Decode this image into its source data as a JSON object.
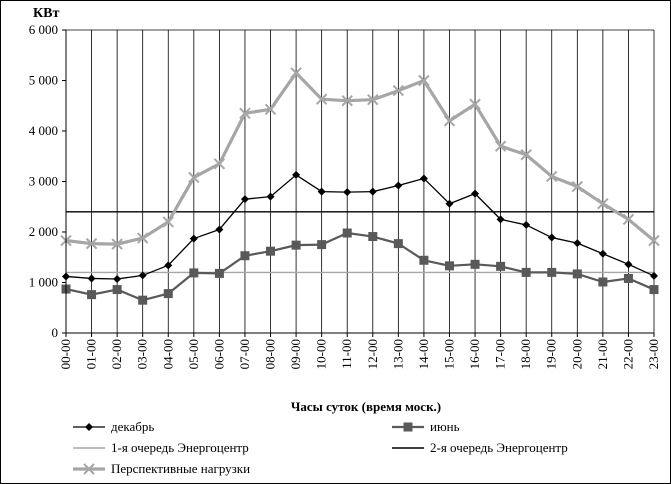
{
  "chart_data": {
    "type": "line",
    "ylabel": "КВт",
    "xlabel": "Часы суток (время моск.)",
    "ylim": [
      0,
      6000
    ],
    "yticks": [
      0,
      1000,
      2000,
      3000,
      4000,
      5000,
      6000
    ],
    "ytick_labels": [
      "0",
      "1 000",
      "2 000",
      "3 000",
      "4 000",
      "5 000",
      "6 000"
    ],
    "categories": [
      "00-00",
      "01-00",
      "02-00",
      "03-00",
      "04-00",
      "05-00",
      "06-00",
      "07-00",
      "08-00",
      "09-00",
      "10-00",
      "11-00",
      "12-00",
      "13-00",
      "14-00",
      "15-00",
      "16-00",
      "17-00",
      "18-00",
      "19-00",
      "20-00",
      "21-00",
      "22-00",
      "23-00"
    ],
    "grid": "vertical",
    "legend": "bottom",
    "series": [
      {
        "name": "декабрь",
        "color": "#000000",
        "marker": "diamond",
        "values": [
          1120,
          1080,
          1070,
          1140,
          1340,
          1870,
          2050,
          2650,
          2700,
          3130,
          2800,
          2790,
          2800,
          2920,
          3060,
          2560,
          2760,
          2250,
          2140,
          1890,
          1780,
          1570,
          1360,
          1130
        ]
      },
      {
        "name": "июнь",
        "color": "#595959",
        "marker": "square",
        "values": [
          870,
          760,
          860,
          650,
          780,
          1190,
          1180,
          1530,
          1620,
          1740,
          1750,
          1980,
          1910,
          1770,
          1440,
          1330,
          1360,
          1320,
          1200,
          1200,
          1170,
          1010,
          1080,
          860
        ]
      },
      {
        "name": "1-я очередь Энергоцентр",
        "color": "#a6a6a6",
        "marker": "none",
        "constant": true,
        "values": [
          1200,
          1200,
          1200,
          1200,
          1200,
          1200,
          1200,
          1200,
          1200,
          1200,
          1200,
          1200,
          1200,
          1200,
          1200,
          1200,
          1200,
          1200,
          1200,
          1200,
          1200,
          1200,
          1200,
          1200
        ]
      },
      {
        "name": "2-я очередь Энергоцентр",
        "color": "#000000",
        "marker": "none",
        "constant": true,
        "values": [
          2400,
          2400,
          2400,
          2400,
          2400,
          2400,
          2400,
          2400,
          2400,
          2400,
          2400,
          2400,
          2400,
          2400,
          2400,
          2400,
          2400,
          2400,
          2400,
          2400,
          2400,
          2400,
          2400,
          2400
        ]
      },
      {
        "name": "Перспективные нагрузки",
        "color": "#a6a6a6",
        "marker": "x",
        "values": [
          1830,
          1770,
          1760,
          1880,
          2200,
          3080,
          3350,
          4350,
          4430,
          5150,
          4630,
          4600,
          4620,
          4800,
          5000,
          4200,
          4530,
          3700,
          3530,
          3100,
          2900,
          2560,
          2250,
          1830
        ]
      }
    ]
  }
}
